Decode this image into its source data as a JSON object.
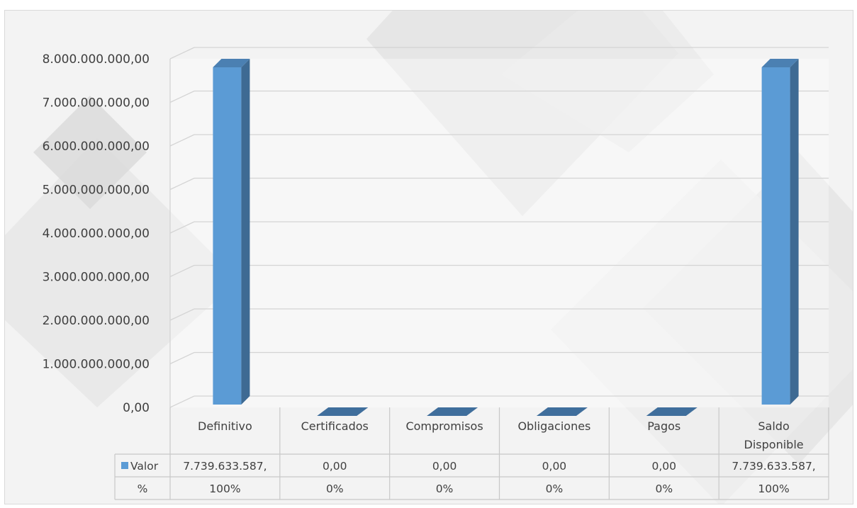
{
  "chart_data": {
    "type": "bar",
    "categories": [
      "Definitivo",
      "Certificados",
      "Compromisos",
      "Obligaciones",
      "Pagos",
      "Saldo Disponible"
    ],
    "series": [
      {
        "name": "Valor",
        "values": [
          7739633587,
          0,
          0,
          0,
          0,
          7739633587
        ],
        "color": "#5b9bd5"
      }
    ],
    "ylim": [
      0,
      8000000000
    ],
    "yticks": [
      "0,00",
      "1.000.000.000,00",
      "2.000.000.000,00",
      "3.000.000.000,00",
      "4.000.000.000,00",
      "5.000.000.000,00",
      "6.000.000.000,00",
      "7.000.000.000,00",
      "8.000.000.000,00"
    ],
    "grid": true,
    "legend": "data-table",
    "data_table": {
      "rows": [
        {
          "key": "Valor",
          "cells": [
            "7.739.633.587,",
            "0,00",
            "0,00",
            "0,00",
            "0,00",
            "7.739.633.587,"
          ]
        },
        {
          "key": "%",
          "cells": [
            "100%",
            "0%",
            "0%",
            "0%",
            "0%",
            "100%"
          ]
        }
      ]
    }
  }
}
